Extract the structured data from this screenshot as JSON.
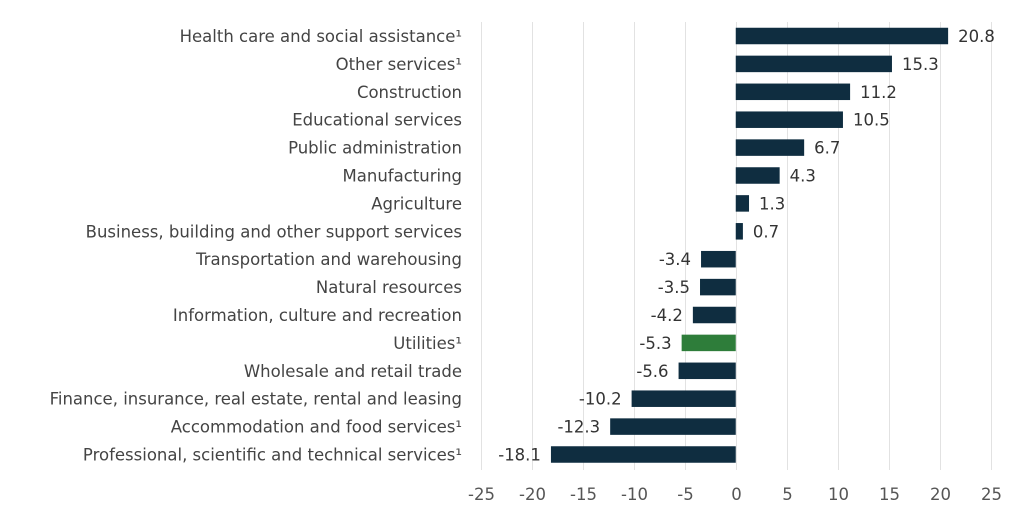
{
  "chart_data": {
    "type": "bar",
    "orientation": "horizontal",
    "title": "",
    "xlabel": "",
    "ylabel": "",
    "xlim": [
      -25,
      25
    ],
    "xticks": [
      -25,
      -20,
      -15,
      -10,
      -5,
      0,
      5,
      10,
      15,
      20,
      25
    ],
    "grid": true,
    "legend": "none",
    "colors": {
      "default": "#0f2d40",
      "highlight": "#2e7d3a"
    },
    "categories": [
      "Health care and social assistance¹",
      "Other services¹",
      "Construction",
      "Educational services",
      "Public administration",
      "Manufacturing",
      "Agriculture",
      "Business, building and other support services",
      "Transportation and warehousing",
      "Natural resources",
      "Information, culture and recreation",
      "Utilities¹",
      "Wholesale and retail trade",
      "Finance, insurance, real estate, rental and leasing",
      "Accommodation and food services¹",
      "Professional, scientific and technical services¹"
    ],
    "values": [
      20.8,
      15.3,
      11.2,
      10.5,
      6.7,
      4.3,
      1.3,
      0.7,
      -3.4,
      -3.5,
      -4.2,
      -5.3,
      -5.6,
      -10.2,
      -12.3,
      -18.1
    ],
    "data_labels": [
      "20.8",
      "15.3",
      "11.2",
      "10.5",
      "6.7",
      "4.3",
      "1.3",
      "0.7",
      "-3.4",
      "-3.5",
      "-4.2",
      "-5.3",
      "-5.6",
      "-10.2",
      "-12.3",
      "-18.1"
    ],
    "highlighted": [
      "Utilities¹"
    ]
  }
}
